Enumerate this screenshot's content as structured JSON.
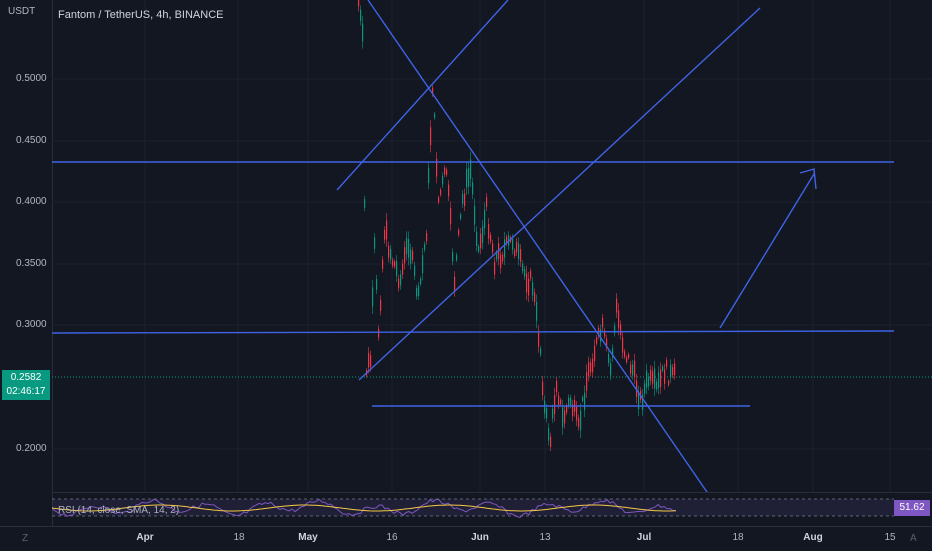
{
  "symbol_title": "Fantom / TetherUS, 4h, BINANCE",
  "price_axis": {
    "unit": "USDT",
    "labels": [
      "0.5000",
      "0.4500",
      "0.4000",
      "0.3500",
      "0.3000",
      "0.2000"
    ]
  },
  "current_price": {
    "price": "0.2582",
    "countdown": "02:46:17"
  },
  "time_axis": {
    "labels": [
      "Apr",
      "18",
      "May",
      "16",
      "Jun",
      "13",
      "Jul",
      "18",
      "Aug",
      "15"
    ],
    "bold": [
      "Apr",
      "May",
      "Jun",
      "Jul",
      "Aug"
    ]
  },
  "rsi": {
    "label": "RSI (14, close, SMA, 14, 2)",
    "value": "51.62"
  },
  "corner": {
    "timezone_button": "Z",
    "auto_button": "A"
  },
  "colors": {
    "background": "#131722",
    "drawing": "#2962ff",
    "up": "#089981",
    "down": "#f23645",
    "rsi": "#7e57c2"
  }
}
